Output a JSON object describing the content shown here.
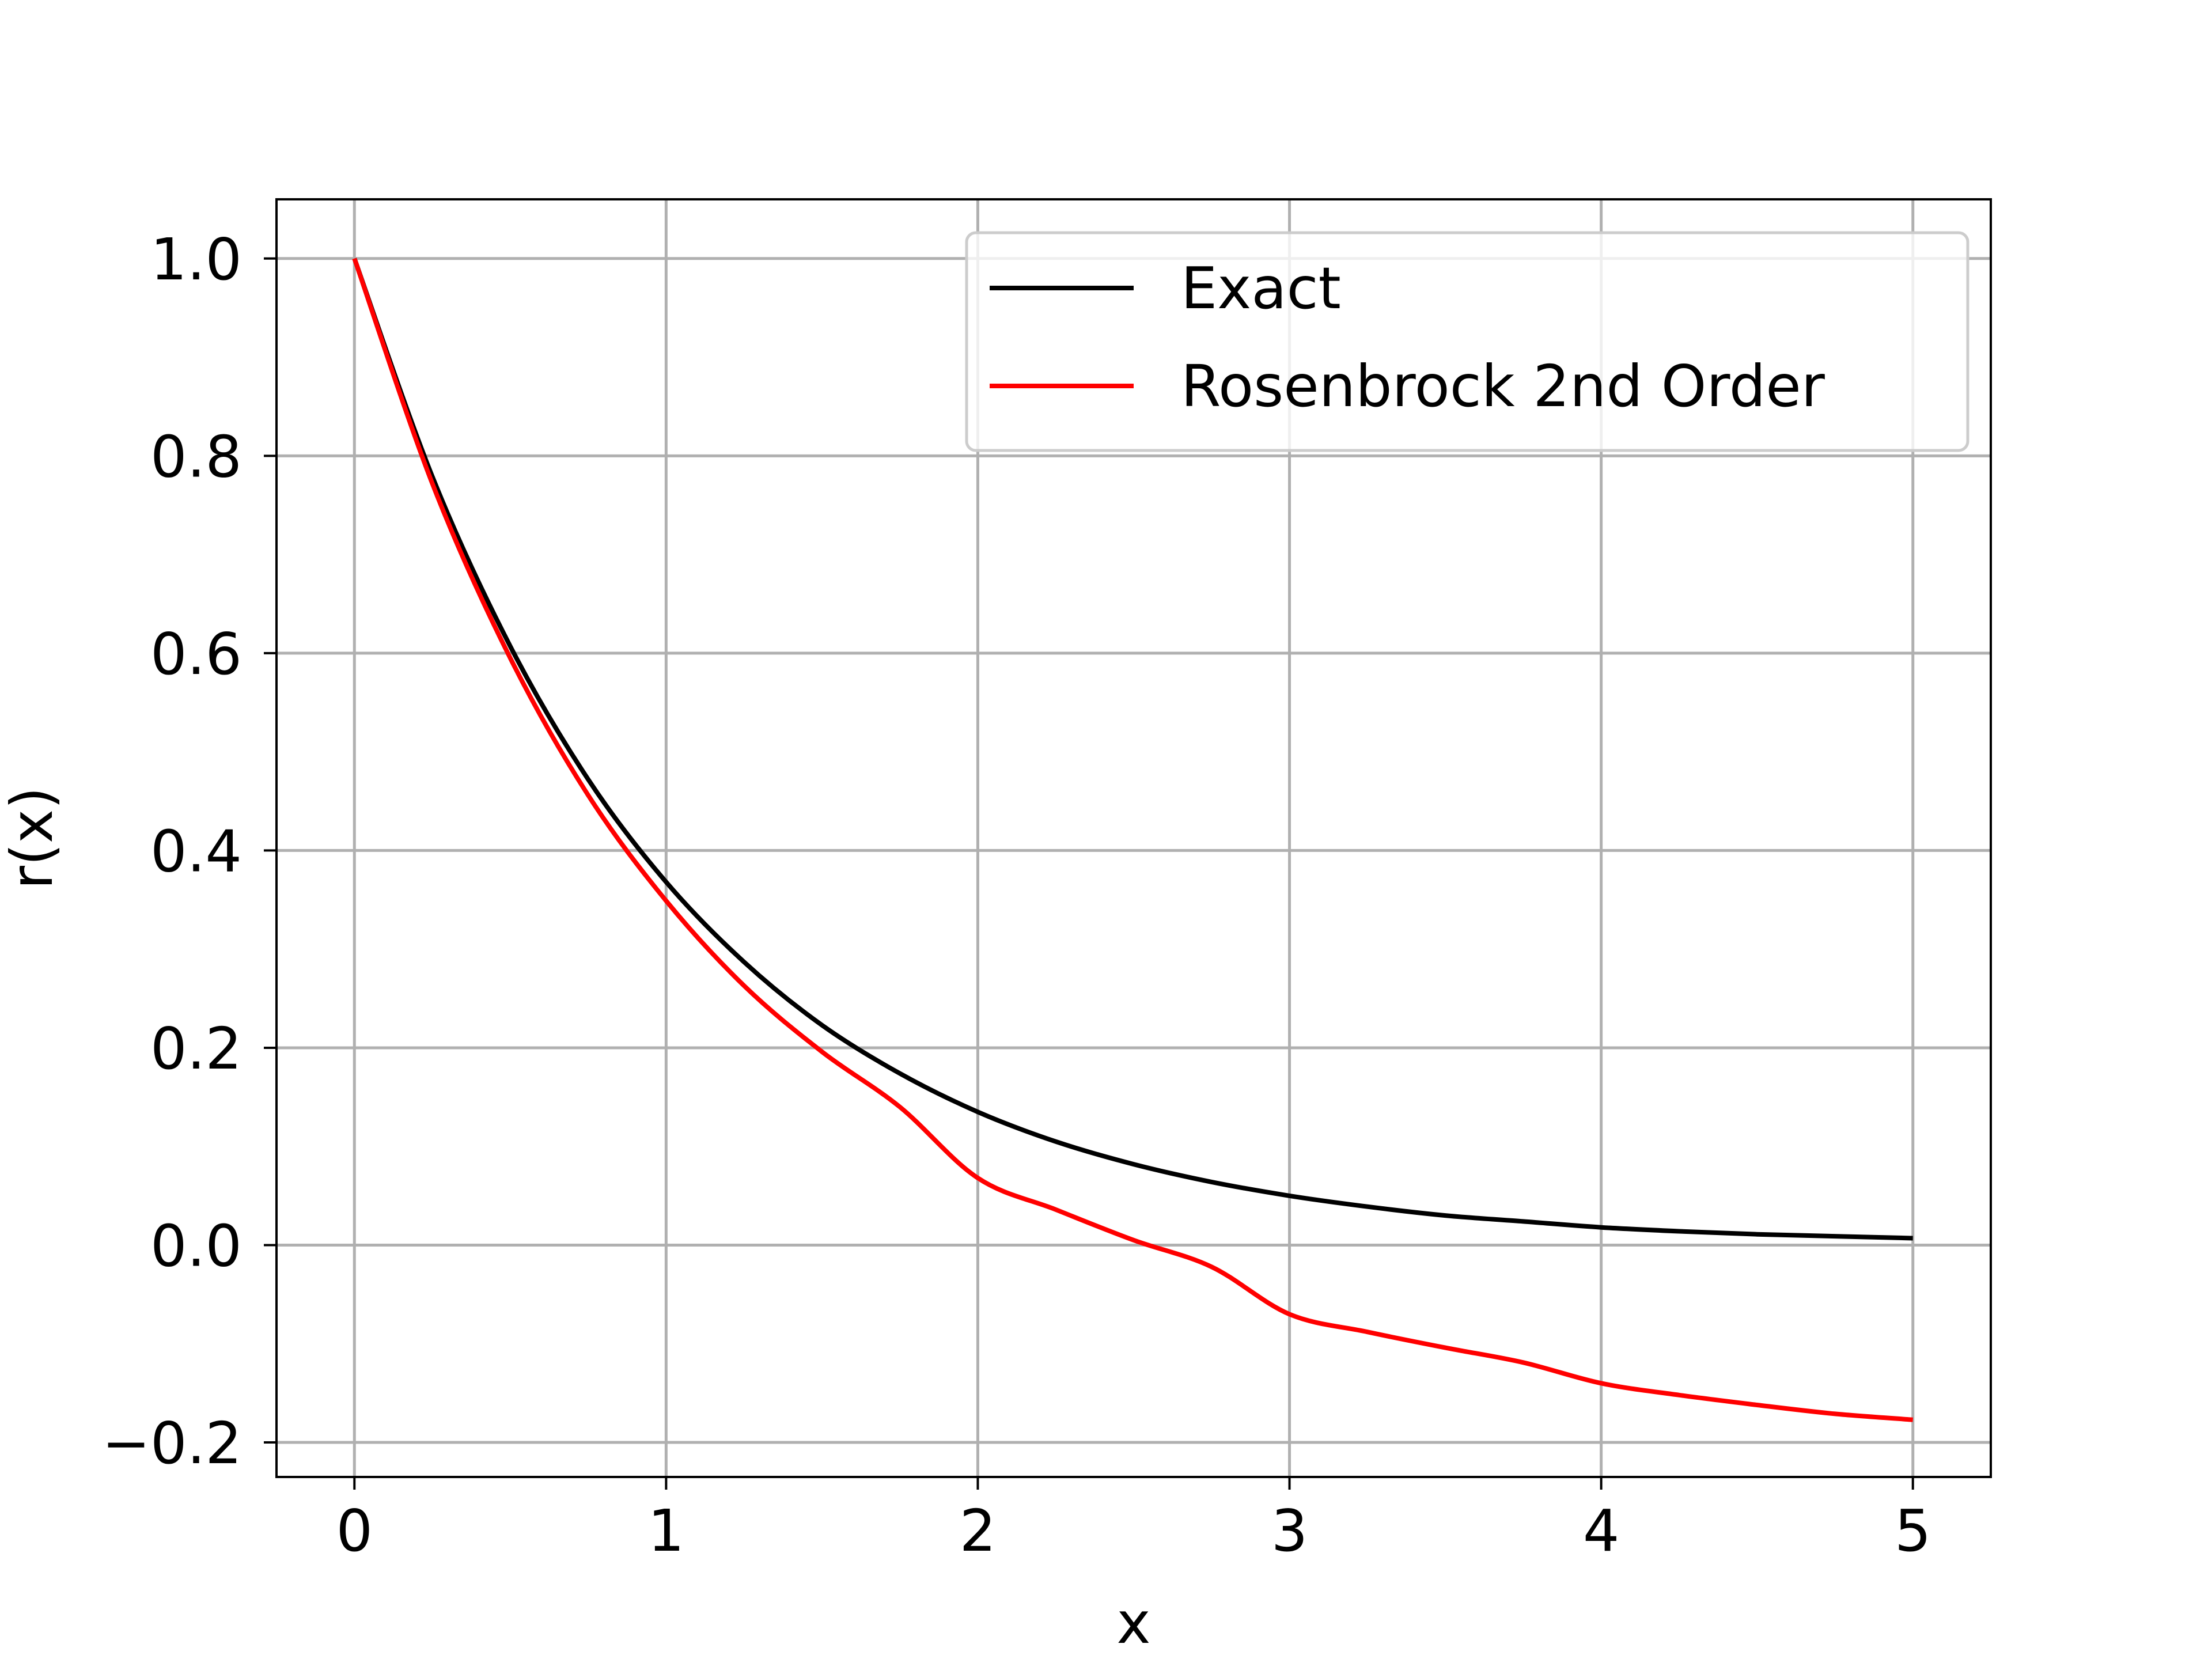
{
  "chart_data": {
    "type": "line",
    "title": "",
    "xlabel": "x",
    "ylabel": "r(x)",
    "xlim": [
      -0.25,
      5.25
    ],
    "ylim": [
      -0.235,
      1.06
    ],
    "xticks": [
      0,
      1,
      2,
      3,
      4,
      5
    ],
    "xtick_labels": [
      "0",
      "1",
      "2",
      "3",
      "4",
      "5"
    ],
    "yticks": [
      -0.2,
      0.0,
      0.2,
      0.4,
      0.6,
      0.8,
      1.0
    ],
    "ytick_labels": [
      "−0.2",
      "0.0",
      "0.2",
      "0.4",
      "0.6",
      "0.8",
      "1.0"
    ],
    "grid": true,
    "legend_position": "top-right",
    "x": [
      0,
      0.25,
      0.5,
      0.75,
      1,
      1.25,
      1.5,
      1.75,
      2,
      2.25,
      2.5,
      2.75,
      3,
      3.25,
      3.5,
      3.75,
      4,
      4.25,
      4.5,
      4.75,
      5
    ],
    "series": [
      {
        "name": "Exact",
        "color": "#000000",
        "values": [
          1.0,
          0.779,
          0.607,
          0.472,
          0.368,
          0.287,
          0.223,
          0.174,
          0.135,
          0.105,
          0.082,
          0.064,
          0.05,
          0.039,
          0.03,
          0.024,
          0.018,
          0.014,
          0.011,
          0.009,
          0.007
        ]
      },
      {
        "name": "Rosenbrock 2nd Order",
        "color": "#ff0000",
        "values": [
          1.0,
          0.772,
          0.595,
          0.456,
          0.349,
          0.263,
          0.196,
          0.14,
          0.068,
          0.036,
          0.005,
          -0.022,
          -0.07,
          -0.088,
          -0.104,
          -0.119,
          -0.14,
          -0.152,
          -0.162,
          -0.171,
          -0.177
        ]
      }
    ]
  }
}
